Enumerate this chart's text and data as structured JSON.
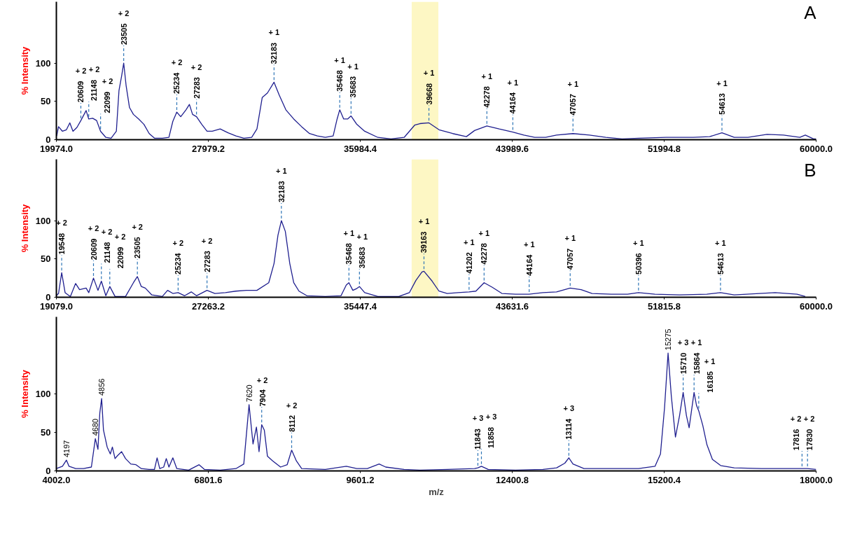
{
  "chart_data": [
    {
      "type": "line",
      "ylabel": "% Intensity",
      "xlim": [
        19974.0,
        60000.0
      ],
      "xticks": [
        {
          "value": 19974.0,
          "label": "19974.0"
        },
        {
          "value": 27979.2,
          "label": "27979.2"
        },
        {
          "value": 35984.4,
          "label": "35984.4"
        },
        {
          "value": 43989.6,
          "label": "43989.6"
        },
        {
          "value": 51994.8,
          "label": "51994.8"
        },
        {
          "value": 60000.0,
          "label": "60000.0"
        }
      ],
      "ylim": [
        0,
        180
      ],
      "yticks": [
        0,
        50,
        100
      ],
      "bands": [
        {
          "axis": "x",
          "from": 38694,
          "to": 40098,
          "color": "#fdf7c4"
        }
      ],
      "series": [
        {
          "color": "#1f1f8f",
          "x": [
            19991,
            20088,
            20295,
            20503,
            20683,
            20849,
            21057,
            21264,
            21541,
            21680,
            21887,
            22095,
            22303,
            22580,
            22857,
            23134,
            23272,
            23411,
            23521,
            23646,
            23826,
            24034,
            24311,
            24588,
            24864,
            25141,
            25557,
            25903,
            26110,
            26318,
            26526,
            26803,
            26983,
            27149,
            27357,
            27634,
            27911,
            28187,
            28603,
            29018,
            29434,
            29849,
            30264,
            30541,
            30818,
            31095,
            31441,
            31718,
            32064,
            32479,
            32895,
            33310,
            33725,
            34141,
            34556,
            34764,
            34902,
            35110,
            35318,
            35498,
            35802,
            36218,
            36910,
            37603,
            38295,
            38849,
            39126,
            39601,
            40134,
            40854,
            41574,
            42006,
            42654,
            43302,
            44022,
            44598,
            45174,
            45750,
            46326,
            47190,
            48054,
            48918,
            49782,
            50646,
            52086,
            53526,
            54390,
            55038,
            55686,
            56406,
            57414,
            58278,
            59142,
            59430,
            59862,
            60000
          ],
          "values": [
            5,
            17,
            11,
            13,
            22,
            11,
            16,
            25,
            38,
            27,
            28,
            25,
            11,
            3,
            2,
            11,
            64,
            83,
            100,
            71,
            42,
            33,
            27,
            20,
            8,
            2,
            2,
            3,
            24,
            36,
            30,
            39,
            46,
            33,
            30,
            20,
            11,
            11,
            14,
            9,
            5,
            2,
            3,
            14,
            55,
            61,
            75,
            58,
            39,
            27,
            17,
            8,
            5,
            3,
            5,
            27,
            39,
            27,
            27,
            31,
            20,
            11,
            3,
            1,
            3,
            19,
            21,
            22,
            13,
            8,
            4,
            12,
            18,
            14,
            10,
            6,
            3,
            3,
            6,
            8,
            6,
            3,
            1,
            2,
            3,
            3,
            4,
            9,
            3,
            3,
            7,
            6,
            3,
            6,
            1,
            1
          ]
        }
      ],
      "annotations": [
        "A",
        {
          "text": "20609",
          "x": 21264,
          "y": 25
        },
        "+ 2",
        {
          "text": "21148",
          "x": 21680,
          "y": 27
        },
        "+ 2",
        {
          "text": "22099",
          "x": 22303,
          "y": 11
        },
        "+ 2",
        {
          "text": "23505",
          "x": 23521,
          "y": 100
        },
        "+ 2",
        {
          "text": "25234",
          "x": 26318,
          "y": 36
        },
        "+ 2",
        {
          "text": "27283",
          "x": 27357,
          "y": 30
        },
        "+ 2",
        {
          "text": "32183",
          "x": 31441,
          "y": 75
        },
        "+ 1",
        {
          "text": "35468",
          "x": 34902,
          "y": 39
        },
        "+ 1",
        {
          "text": "35683",
          "x": 35498,
          "y": 31
        },
        "+ 1",
        {
          "text": "39668",
          "x": 39601,
          "y": 22
        },
        "+ 1",
        {
          "text": "42278",
          "x": 42654,
          "y": 18
        },
        "+ 1",
        {
          "text": "44164",
          "x": 44022,
          "y": 10
        },
        "+ 1",
        {
          "text": "47057",
          "x": 47190,
          "y": 8
        },
        "+ 1",
        {
          "text": "54613",
          "x": 55038,
          "y": 9
        },
        "+ 1"
      ]
    },
    {
      "type": "line",
      "ylabel": "% Intensity",
      "xlim": [
        19079.0,
        60000.0
      ],
      "xticks": [
        {
          "value": 19079.0,
          "label": "19079.0"
        },
        {
          "value": 27263.2,
          "label": "27263.2"
        },
        {
          "value": 35447.4,
          "label": "35447.4"
        },
        {
          "value": 43631.6,
          "label": "43631.6"
        },
        {
          "value": 51815.8,
          "label": "51815.8"
        },
        {
          "value": 60000.0,
          "label": "60000.0"
        }
      ],
      "ylim": [
        0,
        180
      ],
      "yticks": [
        0,
        50,
        100
      ],
      "bands": [
        {
          "axis": "x",
          "from": 38215,
          "to": 39650,
          "color": "#fdf7c4"
        }
      ],
      "series": [
        {
          "color": "#1f1f8f",
          "x": [
            19079,
            19196,
            19365,
            19549,
            19832,
            20116,
            20328,
            20682,
            20823,
            21078,
            21318,
            21503,
            21743,
            21956,
            22239,
            22805,
            23229,
            23442,
            23654,
            23867,
            24221,
            24786,
            25069,
            25352,
            25636,
            25989,
            26343,
            26626,
            27193,
            27617,
            28183,
            28749,
            29315,
            29881,
            30518,
            30802,
            31014,
            31198,
            31410,
            31651,
            31863,
            32146,
            32571,
            33562,
            34411,
            34694,
            34836,
            35048,
            35232,
            35403,
            35685,
            36393,
            37525,
            38091,
            38445,
            38770,
            38878,
            39319,
            39687,
            40129,
            40718,
            41307,
            41675,
            42116,
            42558,
            43073,
            43809,
            44545,
            45281,
            46017,
            46753,
            47342,
            47931,
            48961,
            49844,
            50433,
            51316,
            52641,
            54113,
            54849,
            55585,
            57793,
            58970,
            59412
          ],
          "values": [
            2,
            5,
            32,
            6,
            1,
            18,
            10,
            12,
            6,
            25,
            9,
            21,
            2,
            14,
            1,
            1,
            19,
            27,
            14,
            12,
            3,
            1,
            9,
            5,
            6,
            2,
            7,
            2,
            9,
            5,
            6,
            8,
            9,
            9,
            19,
            44,
            81,
            100,
            86,
            44,
            19,
            8,
            2,
            1,
            2,
            16,
            19,
            9,
            11,
            14,
            6,
            1,
            1,
            6,
            22,
            33,
            34,
            21,
            8,
            5,
            6,
            7,
            8,
            19,
            13,
            5,
            4,
            4,
            6,
            7,
            12,
            10,
            5,
            4,
            4,
            6,
            4,
            3,
            4,
            6,
            3,
            6,
            4,
            1
          ]
        }
      ],
      "annotations": [
        "B",
        {
          "text": "19548",
          "x": 19365,
          "y": 32
        },
        "+ 2",
        {
          "text": "20609",
          "x": 21078,
          "y": 25
        },
        "+ 2",
        {
          "text": "21148",
          "x": 21503,
          "y": 21
        },
        "+ 2",
        {
          "text": "22099",
          "x": 21956,
          "y": 14
        },
        "+ 2",
        {
          "text": "23505",
          "x": 23442,
          "y": 27
        },
        "+ 2",
        {
          "text": "25234",
          "x": 25636,
          "y": 6
        },
        "+ 2",
        {
          "text": "27283",
          "x": 27193,
          "y": 9
        },
        "+ 2",
        {
          "text": "32183",
          "x": 31198,
          "y": 100
        },
        "+ 1",
        {
          "text": "35468",
          "x": 34836,
          "y": 19
        },
        "+ 1",
        {
          "text": "35683",
          "x": 35403,
          "y": 14
        },
        "+ 1",
        {
          "text": "39163",
          "x": 38878,
          "y": 34
        },
        "+ 1",
        {
          "text": "41202",
          "x": 41307,
          "y": 7
        },
        "+ 1",
        {
          "text": "42278",
          "x": 42116,
          "y": 19
        },
        "+ 1",
        {
          "text": "44164",
          "x": 44545,
          "y": 4
        },
        "+ 1",
        {
          "text": "47057",
          "x": 46753,
          "y": 12
        },
        "+ 1",
        {
          "text": "50396",
          "x": 50433,
          "y": 6
        },
        "+ 1",
        {
          "text": "54613",
          "x": 54849,
          "y": 6
        },
        "+ 1"
      ]
    },
    {
      "type": "line",
      "ylabel": "% Intensity",
      "xlabel": "m/z",
      "xlim": [
        4002.0,
        18000.0
      ],
      "xticks": [
        {
          "value": 4002.0,
          "label": "4002.0"
        },
        {
          "value": 6801.6,
          "label": "6801.6"
        },
        {
          "value": 9601.2,
          "label": "9601.2"
        },
        {
          "value": 12400.8,
          "label": "12400.8"
        },
        {
          "value": 15200.4,
          "label": "15200.4"
        },
        {
          "value": 18000.0,
          "label": "18000.0"
        }
      ],
      "ylim": [
        0,
        200
      ],
      "yticks": [
        0,
        50,
        100
      ],
      "series": [
        {
          "color": "#1f1f8f",
          "x": [
            4002,
            4114,
            4187,
            4235,
            4357,
            4502,
            4647,
            4720,
            4768,
            4802,
            4836,
            4870,
            4938,
            4996,
            5034,
            5083,
            5131,
            5204,
            5276,
            5373,
            5470,
            5567,
            5712,
            5809,
            5858,
            5906,
            5979,
            6027,
            6076,
            6148,
            6221,
            6439,
            6632,
            6729,
            7020,
            7310,
            7455,
            7552,
            7625,
            7688,
            7736,
            7785,
            7833,
            7891,
            7988,
            8133,
            8254,
            8337,
            8424,
            8521,
            8956,
            9344,
            9537,
            9731,
            9949,
            10070,
            10409,
            10700,
            11204,
            11707,
            11768,
            11833,
            11959,
            12463,
            12966,
            13218,
            13369,
            13444,
            13520,
            13722,
            14225,
            14729,
            15031,
            15132,
            15207,
            15272,
            15332,
            15408,
            15484,
            15550,
            15610,
            15660,
            15751,
            15796,
            15837,
            15912,
            15988,
            16089,
            16240,
            16491,
            16995,
            17499,
            17740,
            17841,
            18000
          ],
          "values": [
            3,
            6,
            14,
            6,
            3,
            3,
            5,
            42,
            28,
            75,
            94,
            53,
            31,
            22,
            31,
            16,
            20,
            25,
            16,
            9,
            8,
            3,
            2,
            2,
            17,
            3,
            5,
            16,
            5,
            17,
            3,
            1,
            8,
            2,
            1,
            3,
            9,
            86,
            35,
            57,
            25,
            60,
            53,
            19,
            13,
            5,
            8,
            27,
            13,
            3,
            2,
            6,
            3,
            3,
            9,
            5,
            2,
            1,
            2,
            3,
            4,
            6,
            2,
            1,
            2,
            4,
            10,
            17,
            9,
            3,
            3,
            3,
            6,
            22,
            82,
            153,
            97,
            44,
            72,
            102,
            72,
            56,
            102,
            85,
            78,
            59,
            34,
            15,
            7,
            4,
            3,
            3,
            3,
            3,
            2
          ]
        }
      ],
      "annotations": [
        {
          "text": "4197",
          "x": 4187,
          "y": 14
        },
        {
          "text": "4680",
          "x": 4720,
          "y": 42
        },
        {
          "text": "4856",
          "x": 4836,
          "y": 94
        },
        {
          "text": "7620",
          "x": 7552,
          "y": 86
        },
        {
          "text": "7904",
          "x": 7785,
          "y": 60
        },
        "+ 2",
        {
          "text": "8112",
          "x": 8337,
          "y": 27
        },
        "+ 2",
        {
          "text": "11843",
          "x": 11768,
          "y": 4
        },
        "+ 3",
        {
          "text": "11858",
          "x": 11833,
          "y": 6
        },
        "+ 3",
        {
          "text": "13114",
          "x": 13444,
          "y": 17
        },
        "+ 3",
        {
          "text": "15275",
          "x": 15272,
          "y": 153
        },
        {
          "text": "15710",
          "x": 15550,
          "y": 102
        },
        "+ 3",
        {
          "text": "15864",
          "x": 15751,
          "y": 102
        },
        "+ 1",
        {
          "text": "16185",
          "x": 15837,
          "y": 78
        },
        "+ 1",
        {
          "text": "17816",
          "x": 17740,
          "y": 3
        },
        "+ 2",
        {
          "text": "17830",
          "x": 17841,
          "y": 3
        },
        "+ 2"
      ]
    }
  ]
}
